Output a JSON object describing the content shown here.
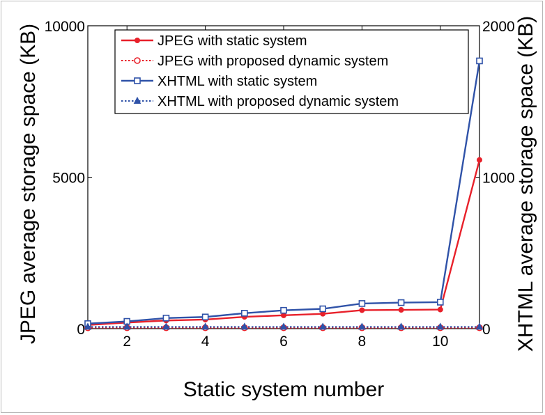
{
  "chart_data": {
    "type": "line",
    "xlabel": "Static system number",
    "ylabel_left": "JPEG average storage space (KB)",
    "ylabel_right": "XHTML average storage space (KB)",
    "x": [
      1,
      2,
      3,
      4,
      5,
      6,
      7,
      8,
      9,
      10,
      11
    ],
    "xlim": [
      1,
      11
    ],
    "xticks": [
      "2",
      "4",
      "6",
      "8",
      "10"
    ],
    "ylim_left": [
      0,
      10000
    ],
    "yticks_left": [
      "0",
      "5000",
      "10000"
    ],
    "ylim_right": [
      0,
      2000
    ],
    "yticks_right": [
      "0",
      "1000",
      "2000"
    ],
    "grid": false,
    "legend_position": "top-center",
    "series": [
      {
        "name": "JPEG with static system",
        "axis": "left",
        "color": "#e8202a",
        "line_style": "solid",
        "marker": "filled-circle",
        "values": [
          120,
          200,
          270,
          300,
          390,
          440,
          490,
          610,
          620,
          630,
          5570
        ]
      },
      {
        "name": "JPEG with proposed dynamic system",
        "axis": "left",
        "color": "#e8202a",
        "line_style": "dotted",
        "marker": "open-circle",
        "values": [
          30,
          30,
          30,
          30,
          30,
          30,
          30,
          30,
          30,
          30,
          30
        ]
      },
      {
        "name": "XHTML with static system",
        "axis": "right",
        "color": "#2f52a8",
        "line_style": "solid",
        "marker": "open-square",
        "values": [
          33,
          48,
          70,
          77,
          102,
          121,
          131,
          166,
          172,
          175,
          1768
        ]
      },
      {
        "name": "XHTML with proposed dynamic system",
        "axis": "right",
        "color": "#2f52a8",
        "line_style": "dotted",
        "marker": "filled-triangle",
        "values": [
          12,
          12,
          12,
          12,
          12,
          12,
          12,
          12,
          12,
          12,
          12
        ]
      }
    ]
  }
}
